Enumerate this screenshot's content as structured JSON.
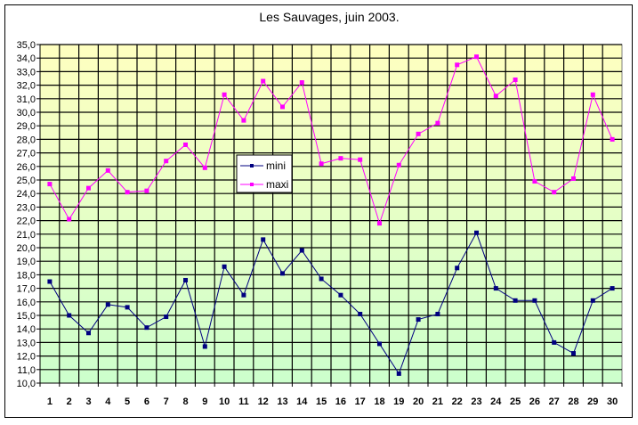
{
  "chart_data": {
    "type": "line",
    "title": "Les Sauvages, juin 2003.",
    "xlabel": "",
    "ylabel": "",
    "x": [
      1,
      2,
      3,
      4,
      5,
      6,
      7,
      8,
      9,
      10,
      11,
      12,
      13,
      14,
      15,
      16,
      17,
      18,
      19,
      20,
      21,
      22,
      23,
      24,
      25,
      26,
      27,
      28,
      29,
      30
    ],
    "ylim": [
      10,
      35
    ],
    "ystep": 1,
    "yticks": [
      "10,0",
      "11,0",
      "12,0",
      "13,0",
      "14,0",
      "15,0",
      "16,0",
      "17,0",
      "18,0",
      "19,0",
      "20,0",
      "21,0",
      "22,0",
      "23,0",
      "24,0",
      "25,0",
      "26,0",
      "27,0",
      "28,0",
      "29,0",
      "30,0",
      "31,0",
      "32,0",
      "33,0",
      "34,0",
      "35,0"
    ],
    "grid": true,
    "legend_position": "center-left",
    "series": [
      {
        "name": "mini",
        "color": "#000080",
        "values": [
          17.5,
          15.0,
          13.7,
          15.8,
          15.6,
          14.1,
          14.9,
          17.6,
          12.7,
          18.6,
          16.5,
          20.6,
          18.1,
          19.8,
          17.7,
          16.5,
          15.1,
          12.9,
          10.7,
          14.7,
          15.1,
          18.5,
          21.1,
          17.0,
          16.1,
          16.1,
          13.0,
          12.2,
          16.1,
          17.0
        ]
      },
      {
        "name": "maxi",
        "color": "#FF00FF",
        "values": [
          24.7,
          22.1,
          24.4,
          25.7,
          24.1,
          24.2,
          26.4,
          27.6,
          25.9,
          31.3,
          29.4,
          32.3,
          30.4,
          32.2,
          26.2,
          26.6,
          26.5,
          21.8,
          26.1,
          28.4,
          29.2,
          33.5,
          34.1,
          31.2,
          32.4,
          24.9,
          24.1,
          25.1,
          31.3,
          28.0
        ]
      }
    ]
  }
}
